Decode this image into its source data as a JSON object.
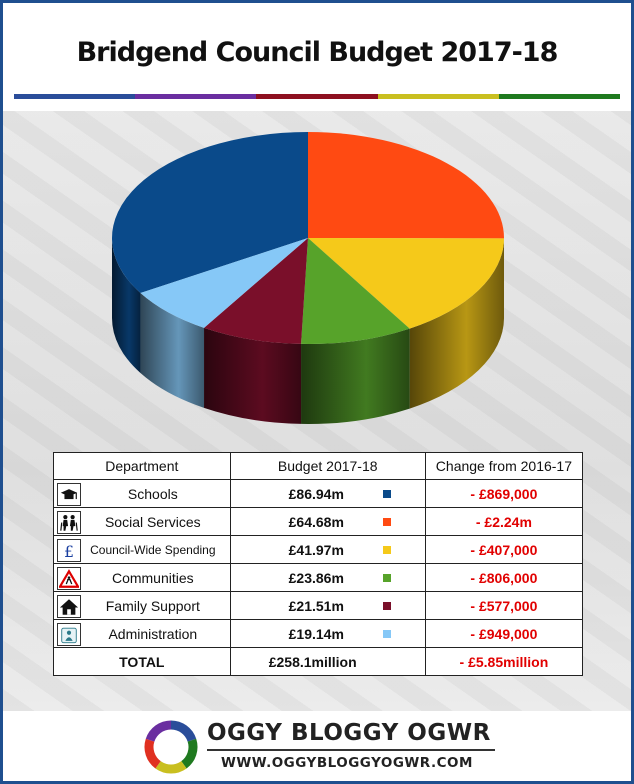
{
  "title": "Bridgend Council Budget 2017-18",
  "stripe_colors": [
    "#2a4d9a",
    "#6a2ea0",
    "#8e1020",
    "#c9bf20",
    "#1f7a1f"
  ],
  "chart_data": {
    "type": "pie",
    "title": "Bridgend Council Budget 2017-18",
    "unit": "£m",
    "slices": [
      {
        "label": "Schools",
        "value": 86.94,
        "color": "#0a4a8a"
      },
      {
        "label": "Social Services",
        "value": 64.68,
        "color": "#ff4a12"
      },
      {
        "label": "Council-Wide Spending",
        "value": 41.97,
        "color": "#f5c91a"
      },
      {
        "label": "Communities",
        "value": 23.86,
        "color": "#57a32a"
      },
      {
        "label": "Family Support",
        "value": 21.51,
        "color": "#7a0f2a"
      },
      {
        "label": "Administration",
        "value": 19.14,
        "color": "#86c8f7"
      }
    ]
  },
  "table": {
    "headers": [
      "Department",
      "Budget 2017-18",
      "Change from 2016-17"
    ],
    "rows": [
      {
        "department": "Schools",
        "budget": "£86.94m",
        "change": "- £869,000",
        "icon": "graduation-cap-icon",
        "color": "#0a4a8a"
      },
      {
        "department": "Social Services",
        "budget": "£64.68m",
        "change": "- £2.24m",
        "icon": "elderly-people-icon",
        "color": "#ff4a12"
      },
      {
        "department": "Council-Wide Spending",
        "budget": "£41.97m",
        "change": "- £407,000",
        "icon": "pound-sign-icon",
        "color": "#f5c91a"
      },
      {
        "department": "Communities",
        "budget": "£23.86m",
        "change": "- £806,000",
        "icon": "roadworks-sign-icon",
        "color": "#57a32a"
      },
      {
        "department": "Family Support",
        "budget": "£21.51m",
        "change": "- £577,000",
        "icon": "house-icon",
        "color": "#7a0f2a"
      },
      {
        "department": "Administration",
        "budget": "£19.14m",
        "change": "- £949,000",
        "icon": "office-worker-icon",
        "color": "#86c8f7"
      }
    ],
    "total": {
      "label": "TOTAL",
      "budget": "£258.1million",
      "change": "- £5.85million"
    }
  },
  "brand": {
    "name": "OGGY BLOGGY OGWR",
    "url": "WWW.OGGYBLOGGYOGWR.COM",
    "logo_colors": [
      "#2a4d9a",
      "#1f7a1f",
      "#c9bf20",
      "#e03020",
      "#6a2ea0"
    ]
  }
}
